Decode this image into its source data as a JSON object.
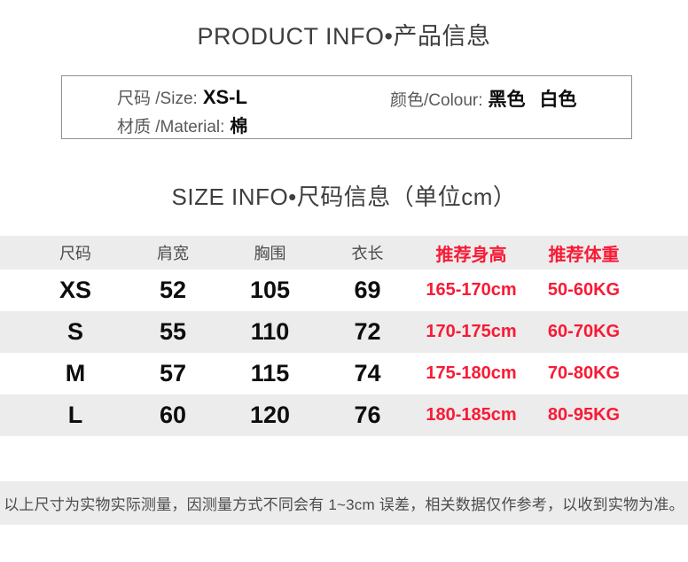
{
  "product_info": {
    "title": "PRODUCT INFO•产品信息",
    "size_label": "尺码 /Size:",
    "size_value": "XS-L",
    "material_label": "材质 /Material:",
    "material_value": "棉",
    "colour_label": "颜色/Colour:",
    "colour_values": [
      "黑色",
      "白色"
    ]
  },
  "size_info": {
    "title": "SIZE INFO•尺码信息（单位cm）",
    "table": {
      "headers": [
        "尺码",
        "肩宽",
        "胸围",
        "衣长",
        "推荐身高",
        "推荐体重"
      ],
      "rows": [
        [
          "XS",
          "52",
          "105",
          "69",
          "165-170cm",
          "50-60KG"
        ],
        [
          "S",
          "55",
          "110",
          "72",
          "170-175cm",
          "60-70KG"
        ],
        [
          "M",
          "57",
          "115",
          "74",
          "175-180cm",
          "70-80KG"
        ],
        [
          "L",
          "60",
          "120",
          "76",
          "180-185cm",
          "80-95KG"
        ]
      ]
    }
  },
  "footer": {
    "note": "以上尺寸为实物实际测量，因测量方式不同会有 1~3cm 误差，相关数据仅作参考，以收到实物为准。"
  },
  "colors": {
    "accent_red": "#f91a35",
    "text_dark": "#3e3e3e",
    "stripe_gray": "#ececec"
  }
}
